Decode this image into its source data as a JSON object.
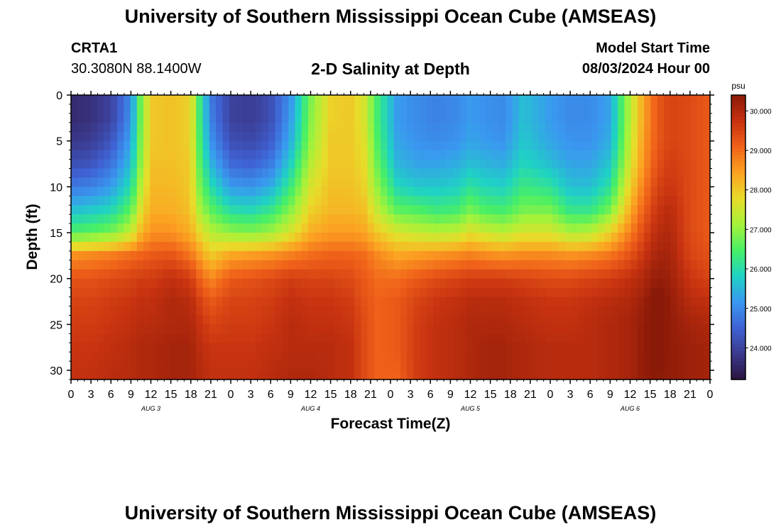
{
  "header": {
    "title": "University of Southern Mississippi Ocean Cube (AMSEAS)",
    "station": "CRTA1",
    "coords": "30.3080N  88.1400W",
    "subtitle": "2-D Salinity at Depth",
    "model_start_label": "Model Start Time",
    "model_start_value": "08/03/2024 Hour 00"
  },
  "footer": {
    "title": "University of Southern Mississippi Ocean Cube (AMSEAS)"
  },
  "chart_data": {
    "type": "heatmap",
    "title": "2-D Salinity at Depth",
    "xlabel": "Forecast Time(Z)",
    "ylabel": "Depth (ft)",
    "x_hours": [
      0,
      96
    ],
    "ylim": [
      0,
      31
    ],
    "x_tick_labels": [
      "0",
      "3",
      "6",
      "9",
      "12",
      "15",
      "18",
      "21",
      "0",
      "3",
      "6",
      "9",
      "12",
      "15",
      "18",
      "21",
      "0",
      "3",
      "6",
      "9",
      "12",
      "15",
      "18",
      "21",
      "0",
      "3",
      "6",
      "9",
      "12",
      "15",
      "18",
      "21",
      "0"
    ],
    "y_ticks": [
      0,
      5,
      10,
      15,
      20,
      25,
      30
    ],
    "day_labels": [
      {
        "label": "AUG 3",
        "hour": 12
      },
      {
        "label": "AUG 4",
        "hour": 36
      },
      {
        "label": "AUG 5",
        "hour": 60
      },
      {
        "label": "AUG 6",
        "hour": 84
      }
    ],
    "colorbar": {
      "unit": "psu",
      "range": [
        23.2,
        30.4
      ],
      "ticks": [
        {
          "value": 30,
          "label": "30.000"
        },
        {
          "value": 29,
          "label": "29.000"
        },
        {
          "value": 28,
          "label": "28.000"
        },
        {
          "value": 27,
          "label": "27.000"
        },
        {
          "value": 26,
          "label": "26.000"
        },
        {
          "value": 25,
          "label": "25.000"
        },
        {
          "value": 24,
          "label": "24.000"
        }
      ],
      "colors": [
        "#2a1340",
        "#3b3a8e",
        "#3f62d3",
        "#3a98f0",
        "#1fd2c4",
        "#48ef66",
        "#a6f23a",
        "#e8dc2a",
        "#fca222",
        "#f0621a",
        "#c63210",
        "#8a1a08"
      ]
    },
    "columns": {
      "hours": [
        0,
        3,
        6,
        9,
        10.5,
        12,
        15,
        18,
        19,
        21,
        24,
        27,
        30,
        33,
        36,
        39,
        42,
        44,
        46,
        49,
        52,
        55,
        58,
        60,
        62,
        65,
        68,
        72,
        75,
        78,
        81,
        84,
        86,
        88,
        90,
        93,
        96
      ],
      "depth": [
        0,
        2.5,
        5,
        7.5,
        10,
        12.5,
        15,
        17.5,
        20,
        22.5,
        25,
        27.5,
        31
      ],
      "salinity": [
        [
          23.6,
          23.6,
          23.8,
          24.2,
          24.8,
          25.6,
          26.5,
          28.6,
          29.3,
          29.5,
          29.6,
          29.7,
          29.8
        ],
        [
          23.7,
          23.7,
          23.9,
          24.3,
          24.9,
          25.7,
          26.6,
          28.7,
          29.3,
          29.5,
          29.6,
          29.7,
          29.8
        ],
        [
          24.0,
          24.0,
          24.3,
          24.7,
          25.2,
          25.9,
          26.8,
          28.8,
          29.4,
          29.6,
          29.7,
          29.8,
          29.9
        ],
        [
          25.0,
          25.1,
          25.3,
          25.6,
          26.0,
          26.6,
          27.4,
          29.0,
          29.5,
          29.7,
          29.8,
          29.9,
          29.9
        ],
        [
          26.8,
          26.8,
          26.9,
          27.0,
          27.3,
          27.7,
          28.2,
          29.1,
          29.6,
          29.8,
          29.9,
          30.0,
          30.0
        ],
        [
          28.0,
          28.0,
          28.0,
          28.1,
          28.2,
          28.3,
          28.6,
          29.2,
          29.6,
          29.8,
          29.9,
          30.0,
          30.0
        ],
        [
          28.1,
          28.1,
          28.1,
          28.1,
          28.2,
          28.3,
          28.6,
          29.3,
          29.8,
          30.0,
          30.0,
          30.1,
          30.1
        ],
        [
          27.9,
          27.9,
          27.9,
          28.0,
          28.0,
          28.1,
          28.3,
          28.9,
          29.6,
          29.9,
          30.0,
          30.1,
          30.1
        ],
        [
          26.6,
          26.6,
          26.7,
          26.8,
          27.0,
          27.3,
          27.9,
          28.6,
          29.2,
          29.6,
          29.8,
          29.9,
          30.0
        ],
        [
          24.8,
          24.9,
          25.1,
          25.5,
          26.0,
          26.6,
          27.3,
          28.0,
          28.7,
          29.2,
          29.5,
          29.7,
          29.8
        ],
        [
          24.0,
          24.0,
          24.2,
          24.6,
          25.2,
          26.0,
          27.0,
          28.4,
          29.2,
          29.5,
          29.6,
          29.7,
          29.8
        ],
        [
          23.9,
          23.9,
          24.1,
          24.5,
          25.1,
          25.9,
          26.9,
          28.5,
          29.3,
          29.5,
          29.6,
          29.7,
          29.8
        ],
        [
          24.2,
          24.2,
          24.4,
          24.8,
          25.4,
          26.2,
          27.1,
          28.6,
          29.4,
          29.6,
          29.7,
          29.8,
          29.9
        ],
        [
          25.1,
          25.2,
          25.4,
          25.8,
          26.3,
          26.9,
          27.6,
          28.8,
          29.6,
          29.8,
          29.9,
          29.9,
          30.0
        ],
        [
          26.8,
          26.9,
          27.0,
          27.3,
          27.6,
          27.9,
          28.3,
          29.0,
          29.5,
          29.7,
          29.8,
          29.9,
          30.0
        ],
        [
          27.9,
          27.9,
          28.0,
          28.0,
          28.1,
          28.2,
          28.5,
          29.1,
          29.5,
          29.7,
          29.8,
          29.9,
          29.9
        ],
        [
          28.0,
          28.0,
          28.0,
          28.0,
          28.1,
          28.2,
          28.5,
          29.1,
          29.4,
          29.6,
          29.7,
          29.8,
          29.8
        ],
        [
          27.6,
          27.6,
          27.7,
          27.8,
          27.9,
          28.1,
          28.4,
          29.0,
          29.2,
          29.3,
          29.4,
          29.4,
          29.4
        ],
        [
          26.4,
          26.4,
          26.5,
          26.7,
          27.0,
          27.4,
          28.0,
          28.7,
          29.0,
          29.1,
          29.1,
          29.1,
          29.1
        ],
        [
          25.2,
          25.2,
          25.3,
          25.5,
          25.9,
          26.6,
          27.6,
          28.4,
          29.0,
          29.2,
          29.2,
          29.2,
          29.1
        ],
        [
          25.0,
          25.0,
          25.1,
          25.3,
          25.7,
          26.5,
          27.4,
          28.5,
          29.2,
          29.5,
          29.6,
          29.6,
          29.6
        ],
        [
          24.9,
          24.9,
          25.0,
          25.3,
          25.7,
          26.3,
          27.3,
          28.6,
          29.4,
          29.7,
          29.8,
          29.8,
          29.8
        ],
        [
          25.0,
          25.0,
          25.1,
          25.4,
          25.8,
          26.4,
          27.4,
          28.7,
          29.5,
          29.8,
          29.9,
          29.9,
          29.9
        ],
        [
          25.2,
          25.2,
          25.3,
          25.6,
          26.1,
          26.8,
          27.7,
          28.8,
          29.6,
          29.9,
          30.0,
          30.0,
          30.0
        ],
        [
          25.1,
          25.1,
          25.2,
          25.5,
          25.9,
          26.5,
          27.5,
          28.7,
          29.6,
          29.9,
          30.0,
          30.1,
          30.1
        ],
        [
          25.0,
          25.0,
          25.1,
          25.4,
          25.8,
          26.4,
          27.3,
          28.6,
          29.6,
          29.9,
          30.0,
          30.1,
          30.1
        ],
        [
          25.6,
          25.6,
          25.7,
          25.9,
          26.3,
          26.8,
          27.6,
          28.7,
          29.5,
          29.8,
          29.9,
          30.0,
          30.0
        ],
        [
          25.2,
          25.2,
          25.3,
          25.6,
          26.1,
          26.8,
          27.6,
          28.7,
          29.4,
          29.7,
          29.8,
          29.9,
          29.9
        ],
        [
          25.0,
          25.0,
          25.1,
          25.3,
          25.6,
          26.2,
          27.2,
          28.6,
          29.4,
          29.7,
          29.8,
          29.9,
          29.9
        ],
        [
          25.0,
          25.0,
          25.1,
          25.3,
          25.6,
          26.2,
          27.3,
          28.7,
          29.5,
          29.8,
          29.9,
          29.9,
          29.9
        ],
        [
          25.3,
          25.3,
          25.4,
          25.7,
          26.1,
          26.8,
          27.9,
          28.9,
          29.6,
          29.9,
          30.0,
          30.0,
          30.0
        ],
        [
          27.3,
          27.3,
          27.4,
          27.6,
          27.9,
          28.3,
          28.8,
          29.3,
          29.8,
          30.0,
          30.1,
          30.1,
          30.1
        ],
        [
          28.4,
          28.4,
          28.5,
          28.6,
          28.8,
          29.1,
          29.4,
          29.7,
          30.0,
          30.2,
          30.3,
          30.3,
          30.3
        ],
        [
          29.2,
          29.2,
          29.2,
          29.3,
          29.5,
          29.7,
          29.9,
          30.1,
          30.3,
          30.6,
          30.5,
          30.5,
          30.4
        ],
        [
          29.5,
          29.5,
          29.5,
          29.6,
          29.7,
          29.9,
          30.0,
          30.1,
          30.2,
          30.3,
          30.3,
          30.3,
          30.3
        ],
        [
          29.4,
          29.4,
          29.4,
          29.4,
          29.4,
          29.4,
          29.4,
          29.5,
          29.7,
          29.9,
          30.1,
          30.2,
          30.2
        ],
        [
          29.2,
          29.2,
          29.2,
          29.2,
          29.2,
          29.2,
          29.2,
          29.3,
          29.5,
          29.8,
          30.0,
          30.1,
          30.1
        ]
      ]
    }
  }
}
